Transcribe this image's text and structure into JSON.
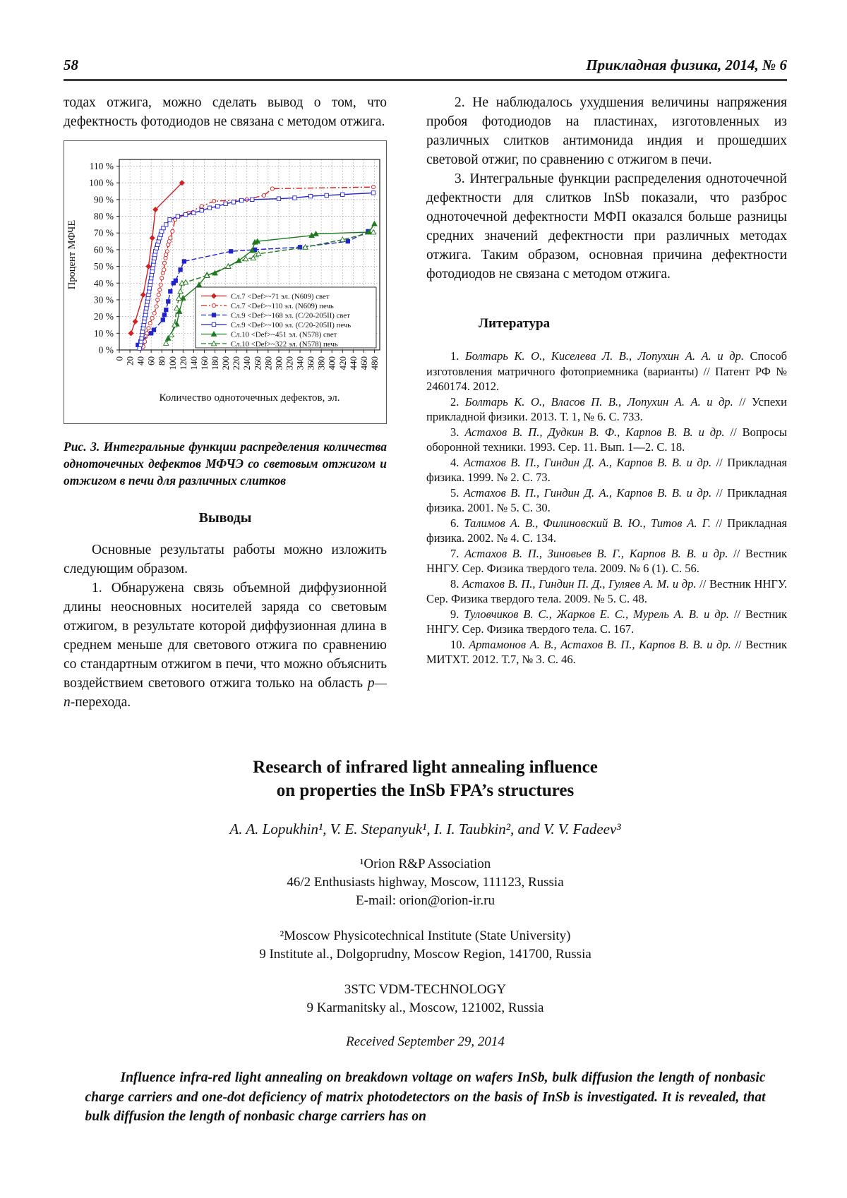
{
  "header": {
    "page_number": "58",
    "journal": "Прикладная физика, 2014, № 6"
  },
  "left_column": {
    "intro": "тодах отжига, можно сделать вывод о том, что дефектность фотодиодов не связана с методом отжига."
  },
  "figure": {
    "caption": "Рис. 3. Интегральные функции распределения количества одноточечных дефектов МФЧЭ со световым отжигом и отжигом в печи для различных слитков"
  },
  "chart_data": {
    "type": "line",
    "title": "",
    "xlabel": "Количество одноточечных дефектов, эл.",
    "ylabel": "Процент МФЧЕ",
    "xlim": [
      0,
      490
    ],
    "ylim": [
      0,
      114
    ],
    "x_ticks": {
      "min": 0,
      "max": 480,
      "step": 20
    },
    "y_ticks": {
      "min": 0,
      "max": 110,
      "step": 10,
      "suffix": " %"
    },
    "grid": true,
    "legend_position": "lower right",
    "series": [
      {
        "name": "Сл.7 <Def>~71 эл. (N609) свет",
        "color": "#d42020",
        "marker": "diamond",
        "fill": "filled",
        "line": "solid",
        "points": [
          [
            22,
            10
          ],
          [
            30,
            17
          ],
          [
            45,
            33
          ],
          [
            55,
            50
          ],
          [
            62,
            67
          ],
          [
            68,
            84
          ],
          [
            118,
            100
          ]
        ]
      },
      {
        "name": "Сл.7 <Def>~110 эл. (N609) печь",
        "color": "#d42020",
        "marker": "circle",
        "fill": "open",
        "line": "dashdot",
        "points": [
          [
            45,
            2
          ],
          [
            48,
            5
          ],
          [
            50,
            8
          ],
          [
            52,
            10
          ],
          [
            55,
            13
          ],
          [
            58,
            16
          ],
          [
            62,
            19
          ],
          [
            66,
            22
          ],
          [
            70,
            26
          ],
          [
            72,
            30
          ],
          [
            74,
            33
          ],
          [
            76,
            36
          ],
          [
            78,
            39
          ],
          [
            80,
            43
          ],
          [
            82,
            46
          ],
          [
            84,
            48
          ],
          [
            85,
            52
          ],
          [
            87,
            55
          ],
          [
            88,
            57
          ],
          [
            90,
            59
          ],
          [
            92,
            63
          ],
          [
            94,
            65
          ],
          [
            96,
            67
          ],
          [
            100,
            71
          ],
          [
            105,
            78
          ],
          [
            130,
            82
          ],
          [
            155,
            86
          ],
          [
            178,
            89
          ],
          [
            240,
            90
          ],
          [
            272,
            92.5
          ],
          [
            288,
            96.5
          ],
          [
            478,
            97.5
          ]
        ]
      },
      {
        "name": "Сл.9 <Def>~168 эл. (C/20-205II) свет",
        "color": "#2323cc",
        "marker": "square",
        "fill": "filled",
        "line": "dashed",
        "points": [
          [
            35,
            3
          ],
          [
            40,
            5
          ],
          [
            60,
            10
          ],
          [
            65,
            12
          ],
          [
            82,
            18
          ],
          [
            85,
            21
          ],
          [
            88,
            24
          ],
          [
            92,
            29
          ],
          [
            96,
            35
          ],
          [
            102,
            40
          ],
          [
            106,
            41.5
          ],
          [
            115,
            48
          ],
          [
            122,
            53
          ],
          [
            210,
            59
          ],
          [
            255,
            60
          ],
          [
            340,
            61.5
          ],
          [
            430,
            65
          ],
          [
            468,
            71
          ]
        ]
      },
      {
        "name": "Сл.9 <Def>~100 эл. (C/20-205II) печь",
        "color": "#2323cc",
        "marker": "square",
        "fill": "open",
        "line": "solid",
        "points": [
          [
            38,
            1
          ],
          [
            40,
            3
          ],
          [
            41,
            5
          ],
          [
            42,
            7
          ],
          [
            43,
            9
          ],
          [
            44,
            11
          ],
          [
            45,
            13
          ],
          [
            46,
            15
          ],
          [
            47,
            17
          ],
          [
            48,
            19
          ],
          [
            49,
            21
          ],
          [
            50,
            23
          ],
          [
            51,
            25
          ],
          [
            52,
            27
          ],
          [
            53,
            29
          ],
          [
            54,
            31
          ],
          [
            55,
            33
          ],
          [
            56,
            35
          ],
          [
            57,
            37
          ],
          [
            58,
            39
          ],
          [
            59,
            41
          ],
          [
            60,
            43
          ],
          [
            61,
            45
          ],
          [
            62,
            47
          ],
          [
            63,
            49
          ],
          [
            64,
            51
          ],
          [
            65,
            53
          ],
          [
            66,
            55
          ],
          [
            67,
            57
          ],
          [
            68,
            59
          ],
          [
            70,
            61
          ],
          [
            72,
            63
          ],
          [
            74,
            65
          ],
          [
            76,
            67
          ],
          [
            78,
            69
          ],
          [
            80,
            71
          ],
          [
            83,
            73
          ],
          [
            88,
            75
          ],
          [
            95,
            78
          ],
          [
            110,
            80
          ],
          [
            125,
            81
          ],
          [
            140,
            82
          ],
          [
            155,
            83.5
          ],
          [
            170,
            85
          ],
          [
            185,
            86
          ],
          [
            200,
            87.5
          ],
          [
            215,
            88.5
          ],
          [
            230,
            89.5
          ],
          [
            250,
            90
          ],
          [
            300,
            90.5
          ],
          [
            330,
            91
          ],
          [
            360,
            92
          ],
          [
            390,
            92.5
          ],
          [
            420,
            93
          ],
          [
            478,
            94
          ]
        ]
      },
      {
        "name": "Сл.10 <Def>~451 эл. (N578) свет",
        "color": "#1d7a1d",
        "marker": "triangle",
        "fill": "filled",
        "line": "solid",
        "points": [
          [
            92,
            7
          ],
          [
            108,
            15.5
          ],
          [
            113,
            23
          ],
          [
            120,
            31
          ],
          [
            150,
            39
          ],
          [
            165,
            45
          ],
          [
            180,
            46
          ],
          [
            205,
            50
          ],
          [
            225,
            53.5
          ],
          [
            250,
            59.5
          ],
          [
            255,
            64.5
          ],
          [
            260,
            65
          ],
          [
            362,
            68.5
          ],
          [
            370,
            69.5
          ],
          [
            470,
            70.5
          ],
          [
            480,
            75.5
          ]
        ]
      },
      {
        "name": "Сл.10 <Def>~322 эл. (N578) печь",
        "color": "#1d7a1d",
        "marker": "triangle",
        "fill": "open",
        "line": "dashed",
        "points": [
          [
            88,
            4
          ],
          [
            98,
            9
          ],
          [
            104,
            15
          ],
          [
            108,
            25
          ],
          [
            112,
            31
          ],
          [
            115,
            35
          ],
          [
            118,
            40
          ],
          [
            125,
            40.5
          ],
          [
            165,
            44.5
          ],
          [
            205,
            50
          ],
          [
            238,
            54.5
          ],
          [
            252,
            55
          ],
          [
            257,
            57
          ],
          [
            262,
            57.5
          ],
          [
            350,
            61.5
          ],
          [
            420,
            66
          ],
          [
            478,
            70.5
          ]
        ]
      }
    ]
  },
  "conclusions": {
    "heading": "Выводы",
    "p1": "Основные результаты работы можно изложить следующим образом.",
    "p2_main": "1. Обнаружена связь объемной диффузионной длины неосновных носителей заряда со световым отжигом, в результате которой диффузионная длина в среднем меньше для светового отжига по сравнению со стандартным отжигом в печи, что можно объяснить воздействием светового отжига только на область ",
    "p2_pn": "p—n",
    "p2_tail": "-перехода."
  },
  "right_column": {
    "p2": "2. Не наблюдалось ухудшения величины напряжения пробоя фотодиодов на пластинах, изготовленных из различных слитков антимонида индия и прошедших световой отжиг, по сравнению с отжигом в печи.",
    "p3": "3. Интегральные функции распределения одноточечной дефектности для слитков InSb показали, что разброс одноточечной дефектности МФП оказался больше разницы средних значений дефектности при различных методах отжига. Таким образом, основная причина дефектности фотодиодов не связана с методом отжига.",
    "lit_heading": "Литература",
    "references": [
      {
        "num": "1. ",
        "authors": "Болтарь К. О., Киселева Л. В., Лопухин А. А. и др.",
        "rest": " Способ изготовления матричного фотоприемника (варианты) // Патент РФ № 2460174. 2012."
      },
      {
        "num": "2. ",
        "authors": "Болтарь К. О., Власов П. В., Лопухин А. А. и др.",
        "rest": " // Успехи прикладной физики. 2013. Т. 1, № 6. С. 733."
      },
      {
        "num": "3. ",
        "authors": "Астахов В. П., Дудкин В. Ф., Карпов В. В. и др.",
        "rest": " // Вопросы оборонной техники. 1993. Сер. 11. Вып. 1—2. С. 18."
      },
      {
        "num": "4. ",
        "authors": "Астахов В. П., Гиндин Д. А., Карпов В. В. и др.",
        "rest": " // Прикладная физика. 1999. № 2. С. 73."
      },
      {
        "num": "5. ",
        "authors": "Астахов В. П., Гиндин Д. А., Карпов В. В. и др.",
        "rest": " // Прикладная физика. 2001. № 5. С. 30."
      },
      {
        "num": "6. ",
        "authors": "Талимов А. В., Филиновский В. Ю., Титов А. Г.",
        "rest": " // Прикладная физика. 2002. № 4. С. 134."
      },
      {
        "num": "7. ",
        "authors": "Астахов В. П., Зиновьев В. Г., Карпов В. В. и др.",
        "rest": " // Вестник ННГУ. Сер. Физика твердого тела. 2009. № 6 (1). С. 56."
      },
      {
        "num": "8. ",
        "authors": "Астахов В. П., Гиндин П. Д., Гуляев А. М. и др.",
        "rest": " // Вестник ННГУ. Сер. Физика твердого тела. 2009. № 5. С. 48."
      },
      {
        "num": "9. ",
        "authors": "Туловчиков В. С., Жарков Е. С., Мурель А. В. и др.",
        "rest": " // Вестник ННГУ. Сер. Физика твердого тела. С. 167."
      },
      {
        "num": "10. ",
        "authors": "Артамонов А. В., Астахов В. П., Карпов В. В. и др.",
        "rest": "  // Вестник МИТХТ. 2012. Т.7, № 3. С. 46."
      }
    ]
  },
  "english_section": {
    "title_line1": "Research of infrared light annealing influence",
    "title_line2": "on properties the InSb FPA’s structures",
    "authors": "A. A. Lopukhin¹, V. E. Stepanyuk¹, I. I. Taubkin², and V. V. Fadeev³",
    "affil1_line1": "¹Orion R&P Association",
    "affil1_line2": "46/2 Enthusiasts highway, Moscow, 111123, Russia",
    "affil1_line3": "E-mail: orion@orion-ir.ru",
    "affil2_line1": "²Moscow Physicotechnical Institute (State University)",
    "affil2_line2": "9 Institute al., Dolgoprudny, Moscow Region, 141700, Russia",
    "affil3_line1": "3STC VDM-TECHNOLOGY",
    "affil3_line2": "9 Karmanitsky al., Moscow, 121002, Russia",
    "received": "Received September 29, 2014",
    "abstract": "Influence infra-red light annealing on breakdown voltage on wafers InSb, bulk diffusion the length of nonbasic charge carriers and one-dot deficiency of matrix photodetectors on the basis of InSb is investigated. It is revealed, that bulk diffusion the length of nonbasic charge carriers has on"
  }
}
